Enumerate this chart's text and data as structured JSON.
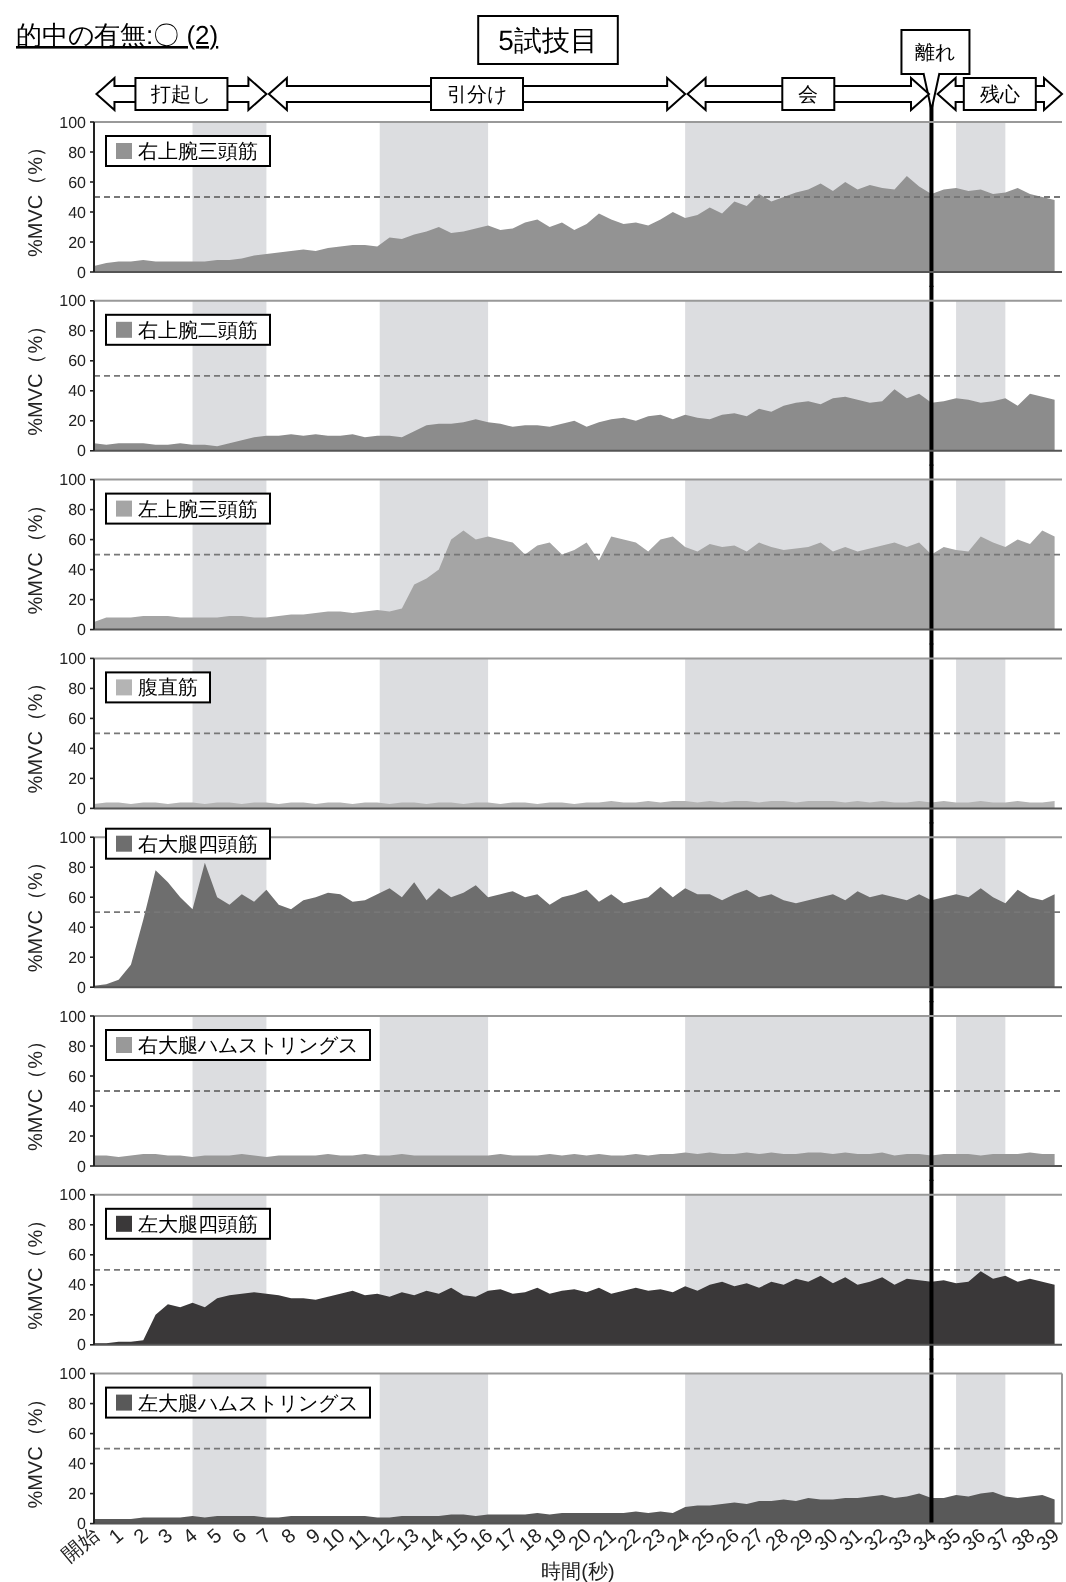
{
  "chart_data": [
    {
      "type": "area",
      "title": "5試技目",
      "annotations": [
        "的中の有無:〇 (2)",
        "打起し",
        "引分け",
        "会",
        "残心"
      ],
      "ylabel": "%MVC（%）",
      "tick_labels": "y",
      "xlim": [
        0,
        39.3
      ],
      "ylim": [
        0,
        100
      ],
      "yticks": [
        0,
        20,
        40,
        60,
        80,
        100
      ],
      "x": [
        0,
        0.5,
        1,
        1.5,
        2,
        2.5,
        3,
        3.5,
        4,
        4.5,
        5,
        5.5,
        6,
        6.5,
        7,
        7.5,
        8,
        8.5,
        9,
        9.5,
        10,
        10.5,
        11,
        11.5,
        12,
        12.5,
        13,
        13.5,
        14,
        14.5,
        15,
        15.5,
        16,
        16.5,
        17,
        17.5,
        18,
        18.5,
        19,
        19.5,
        20,
        20.5,
        21,
        21.5,
        22,
        22.5,
        23,
        23.5,
        24,
        24.5,
        25,
        25.5,
        26,
        26.5,
        27,
        27.5,
        28,
        28.5,
        29,
        29.5,
        30,
        30.5,
        31,
        31.5,
        32,
        32.5,
        33,
        33.5,
        34,
        34.5,
        35,
        35.5,
        36,
        36.5,
        37,
        37.5,
        38,
        38.5,
        39
      ],
      "bands": [
        {
          "axis": "x",
          "from": 4,
          "to": 7,
          "color": "#dcdde0"
        },
        {
          "axis": "x",
          "from": 11.6,
          "to": 16,
          "color": "#dcdde0"
        },
        {
          "axis": "x",
          "from": 24,
          "to": 34,
          "color": "#dcdde0"
        },
        {
          "axis": "x",
          "from": 35,
          "to": 37,
          "color": "#dcdde0"
        }
      ],
      "ref_lines": [
        {
          "axis": "y",
          "value": 50,
          "color": "#777777",
          "line_style": "dashed"
        },
        {
          "axis": "x",
          "value": 34,
          "label": "離れ",
          "color": "#000000"
        }
      ],
      "series": [
        {
          "name": "右上腕三頭筋",
          "color": "#939393",
          "values": [
            4,
            6,
            7,
            7,
            8,
            7,
            7,
            7,
            7,
            7,
            8,
            8,
            9,
            11,
            12,
            13,
            14,
            15,
            14,
            16,
            17,
            18,
            18,
            17,
            23,
            22,
            25,
            27,
            30,
            26,
            27,
            29,
            31,
            28,
            29,
            33,
            35,
            30,
            33,
            28,
            32,
            39,
            35,
            32,
            33,
            31,
            35,
            40,
            36,
            38,
            43,
            39,
            47,
            44,
            52,
            47,
            50,
            53,
            55,
            59,
            54,
            60,
            55,
            58,
            56,
            55,
            64,
            57,
            52,
            55,
            56,
            54,
            55,
            52,
            53,
            56,
            52,
            50,
            48
          ]
        }
      ]
    },
    {
      "type": "area",
      "ylabel": "%MVC（%）",
      "tick_labels": "y",
      "xlim": [
        0,
        39.3
      ],
      "ylim": [
        0,
        100
      ],
      "yticks": [
        0,
        20,
        40,
        60,
        80,
        100
      ],
      "x": [
        0,
        0.5,
        1,
        1.5,
        2,
        2.5,
        3,
        3.5,
        4,
        4.5,
        5,
        5.5,
        6,
        6.5,
        7,
        7.5,
        8,
        8.5,
        9,
        9.5,
        10,
        10.5,
        11,
        11.5,
        12,
        12.5,
        13,
        13.5,
        14,
        14.5,
        15,
        15.5,
        16,
        16.5,
        17,
        17.5,
        18,
        18.5,
        19,
        19.5,
        20,
        20.5,
        21,
        21.5,
        22,
        22.5,
        23,
        23.5,
        24,
        24.5,
        25,
        25.5,
        26,
        26.5,
        27,
        27.5,
        28,
        28.5,
        29,
        29.5,
        30,
        30.5,
        31,
        31.5,
        32,
        32.5,
        33,
        33.5,
        34,
        34.5,
        35,
        35.5,
        36,
        36.5,
        37,
        37.5,
        38,
        38.5,
        39
      ],
      "bands": [
        {
          "axis": "x",
          "from": 4,
          "to": 7,
          "color": "#dcdde0"
        },
        {
          "axis": "x",
          "from": 11.6,
          "to": 16,
          "color": "#dcdde0"
        },
        {
          "axis": "x",
          "from": 24,
          "to": 34,
          "color": "#dcdde0"
        },
        {
          "axis": "x",
          "from": 35,
          "to": 37,
          "color": "#dcdde0"
        }
      ],
      "ref_lines": [
        {
          "axis": "y",
          "value": 50,
          "color": "#777777",
          "line_style": "dashed"
        },
        {
          "axis": "x",
          "value": 34,
          "color": "#000000"
        }
      ],
      "series": [
        {
          "name": "右上腕二頭筋",
          "color": "#8c8c8c",
          "values": [
            5,
            4,
            5,
            5,
            5,
            4,
            4,
            5,
            4,
            4,
            3,
            5,
            7,
            9,
            10,
            10,
            11,
            10,
            11,
            10,
            10,
            11,
            9,
            10,
            10,
            9,
            13,
            17,
            18,
            18,
            19,
            21,
            19,
            18,
            16,
            17,
            17,
            16,
            18,
            20,
            16,
            19,
            21,
            22,
            20,
            23,
            24,
            21,
            24,
            22,
            21,
            24,
            25,
            23,
            28,
            26,
            30,
            32,
            33,
            31,
            35,
            36,
            34,
            32,
            33,
            41,
            35,
            38,
            32,
            33,
            35,
            34,
            32,
            33,
            35,
            30,
            38,
            36,
            34
          ]
        }
      ]
    },
    {
      "type": "area",
      "ylabel": "%MVC（%）",
      "tick_labels": "y",
      "xlim": [
        0,
        39.3
      ],
      "ylim": [
        0,
        100
      ],
      "yticks": [
        0,
        20,
        40,
        60,
        80,
        100
      ],
      "x": [
        0,
        0.5,
        1,
        1.5,
        2,
        2.5,
        3,
        3.5,
        4,
        4.5,
        5,
        5.5,
        6,
        6.5,
        7,
        7.5,
        8,
        8.5,
        9,
        9.5,
        10,
        10.5,
        11,
        11.5,
        12,
        12.5,
        13,
        13.5,
        14,
        14.5,
        15,
        15.5,
        16,
        16.5,
        17,
        17.5,
        18,
        18.5,
        19,
        19.5,
        20,
        20.5,
        21,
        21.5,
        22,
        22.5,
        23,
        23.5,
        24,
        24.5,
        25,
        25.5,
        26,
        26.5,
        27,
        27.5,
        28,
        28.5,
        29,
        29.5,
        30,
        30.5,
        31,
        31.5,
        32,
        32.5,
        33,
        33.5,
        34,
        34.5,
        35,
        35.5,
        36,
        36.5,
        37,
        37.5,
        38,
        38.5,
        39
      ],
      "bands": [
        {
          "axis": "x",
          "from": 4,
          "to": 7,
          "color": "#dcdde0"
        },
        {
          "axis": "x",
          "from": 11.6,
          "to": 16,
          "color": "#dcdde0"
        },
        {
          "axis": "x",
          "from": 24,
          "to": 34,
          "color": "#dcdde0"
        },
        {
          "axis": "x",
          "from": 35,
          "to": 37,
          "color": "#dcdde0"
        }
      ],
      "ref_lines": [
        {
          "axis": "y",
          "value": 50,
          "color": "#777777",
          "line_style": "dashed"
        },
        {
          "axis": "x",
          "value": 34,
          "color": "#000000"
        }
      ],
      "series": [
        {
          "name": "左上腕三頭筋",
          "color": "#a5a5a5",
          "values": [
            5,
            8,
            8,
            8,
            9,
            9,
            9,
            8,
            8,
            8,
            8,
            9,
            9,
            8,
            8,
            9,
            10,
            10,
            11,
            12,
            12,
            11,
            12,
            13,
            12,
            14,
            30,
            34,
            40,
            60,
            66,
            60,
            62,
            60,
            58,
            50,
            56,
            58,
            50,
            53,
            58,
            46,
            62,
            60,
            58,
            52,
            60,
            62,
            55,
            52,
            57,
            55,
            56,
            52,
            58,
            55,
            53,
            54,
            55,
            58,
            52,
            55,
            52,
            54,
            56,
            58,
            55,
            58,
            50,
            55,
            53,
            52,
            62,
            58,
            55,
            60,
            57,
            66,
            62
          ]
        }
      ]
    },
    {
      "type": "area",
      "ylabel": "%MVC（%）",
      "tick_labels": "y",
      "xlim": [
        0,
        39.3
      ],
      "ylim": [
        0,
        100
      ],
      "yticks": [
        0,
        20,
        40,
        60,
        80,
        100
      ],
      "x": [
        0,
        0.5,
        1,
        1.5,
        2,
        2.5,
        3,
        3.5,
        4,
        4.5,
        5,
        5.5,
        6,
        6.5,
        7,
        7.5,
        8,
        8.5,
        9,
        9.5,
        10,
        10.5,
        11,
        11.5,
        12,
        12.5,
        13,
        13.5,
        14,
        14.5,
        15,
        15.5,
        16,
        16.5,
        17,
        17.5,
        18,
        18.5,
        19,
        19.5,
        20,
        20.5,
        21,
        21.5,
        22,
        22.5,
        23,
        23.5,
        24,
        24.5,
        25,
        25.5,
        26,
        26.5,
        27,
        27.5,
        28,
        28.5,
        29,
        29.5,
        30,
        30.5,
        31,
        31.5,
        32,
        32.5,
        33,
        33.5,
        34,
        34.5,
        35,
        35.5,
        36,
        36.5,
        37,
        37.5,
        38,
        38.5,
        39
      ],
      "bands": [
        {
          "axis": "x",
          "from": 4,
          "to": 7,
          "color": "#dcdde0"
        },
        {
          "axis": "x",
          "from": 11.6,
          "to": 16,
          "color": "#dcdde0"
        },
        {
          "axis": "x",
          "from": 24,
          "to": 34,
          "color": "#dcdde0"
        },
        {
          "axis": "x",
          "from": 35,
          "to": 37,
          "color": "#dcdde0"
        }
      ],
      "ref_lines": [
        {
          "axis": "y",
          "value": 50,
          "color": "#777777",
          "line_style": "dashed"
        },
        {
          "axis": "x",
          "value": 34,
          "color": "#000000"
        }
      ],
      "series": [
        {
          "name": "腹直筋",
          "color": "#b4b4b4",
          "values": [
            3,
            4,
            4,
            3,
            4,
            4,
            3,
            4,
            4,
            3,
            4,
            4,
            3,
            4,
            4,
            3,
            4,
            4,
            3,
            4,
            4,
            3,
            4,
            4,
            3,
            4,
            4,
            3,
            4,
            4,
            3,
            4,
            4,
            3,
            4,
            4,
            3,
            4,
            4,
            3,
            4,
            4,
            5,
            4,
            4,
            5,
            4,
            5,
            5,
            4,
            5,
            4,
            5,
            5,
            4,
            5,
            5,
            4,
            5,
            5,
            5,
            4,
            5,
            4,
            5,
            4,
            4,
            5,
            4,
            5,
            4,
            4,
            5,
            4,
            4,
            5,
            4,
            4,
            5
          ]
        }
      ]
    },
    {
      "type": "area",
      "ylabel": "%MVC（%）",
      "tick_labels": "y",
      "xlim": [
        0,
        39.3
      ],
      "ylim": [
        0,
        100
      ],
      "yticks": [
        0,
        20,
        40,
        60,
        80,
        100
      ],
      "x": [
        0,
        0.5,
        1,
        1.5,
        2,
        2.5,
        3,
        3.5,
        4,
        4.5,
        5,
        5.5,
        6,
        6.5,
        7,
        7.5,
        8,
        8.5,
        9,
        9.5,
        10,
        10.5,
        11,
        11.5,
        12,
        12.5,
        13,
        13.5,
        14,
        14.5,
        15,
        15.5,
        16,
        16.5,
        17,
        17.5,
        18,
        18.5,
        19,
        19.5,
        20,
        20.5,
        21,
        21.5,
        22,
        22.5,
        23,
        23.5,
        24,
        24.5,
        25,
        25.5,
        26,
        26.5,
        27,
        27.5,
        28,
        28.5,
        29,
        29.5,
        30,
        30.5,
        31,
        31.5,
        32,
        32.5,
        33,
        33.5,
        34,
        34.5,
        35,
        35.5,
        36,
        36.5,
        37,
        37.5,
        38,
        38.5,
        39
      ],
      "bands": [
        {
          "axis": "x",
          "from": 4,
          "to": 7,
          "color": "#dcdde0"
        },
        {
          "axis": "x",
          "from": 11.6,
          "to": 16,
          "color": "#dcdde0"
        },
        {
          "axis": "x",
          "from": 24,
          "to": 34,
          "color": "#dcdde0"
        },
        {
          "axis": "x",
          "from": 35,
          "to": 37,
          "color": "#dcdde0"
        }
      ],
      "ref_lines": [
        {
          "axis": "y",
          "value": 50,
          "color": "#777777",
          "line_style": "dashed"
        },
        {
          "axis": "x",
          "value": 34,
          "color": "#000000"
        }
      ],
      "series": [
        {
          "name": "右大腿四頭筋",
          "color": "#6e6e6e",
          "values": [
            1,
            2,
            5,
            15,
            45,
            78,
            70,
            60,
            52,
            83,
            60,
            55,
            62,
            57,
            65,
            55,
            52,
            58,
            60,
            63,
            62,
            57,
            58,
            62,
            66,
            60,
            70,
            58,
            66,
            60,
            63,
            68,
            60,
            62,
            64,
            60,
            62,
            55,
            60,
            62,
            65,
            57,
            62,
            56,
            58,
            60,
            67,
            60,
            66,
            62,
            62,
            58,
            62,
            65,
            60,
            62,
            58,
            56,
            58,
            60,
            62,
            58,
            64,
            60,
            62,
            60,
            58,
            62,
            58,
            60,
            62,
            60,
            66,
            60,
            56,
            65,
            60,
            58,
            62
          ]
        }
      ]
    },
    {
      "type": "area",
      "ylabel": "%MVC（%）",
      "tick_labels": "y",
      "xlim": [
        0,
        39.3
      ],
      "ylim": [
        0,
        100
      ],
      "yticks": [
        0,
        20,
        40,
        60,
        80,
        100
      ],
      "x": [
        0,
        0.5,
        1,
        1.5,
        2,
        2.5,
        3,
        3.5,
        4,
        4.5,
        5,
        5.5,
        6,
        6.5,
        7,
        7.5,
        8,
        8.5,
        9,
        9.5,
        10,
        10.5,
        11,
        11.5,
        12,
        12.5,
        13,
        13.5,
        14,
        14.5,
        15,
        15.5,
        16,
        16.5,
        17,
        17.5,
        18,
        18.5,
        19,
        19.5,
        20,
        20.5,
        21,
        21.5,
        22,
        22.5,
        23,
        23.5,
        24,
        24.5,
        25,
        25.5,
        26,
        26.5,
        27,
        27.5,
        28,
        28.5,
        29,
        29.5,
        30,
        30.5,
        31,
        31.5,
        32,
        32.5,
        33,
        33.5,
        34,
        34.5,
        35,
        35.5,
        36,
        36.5,
        37,
        37.5,
        38,
        38.5,
        39
      ],
      "bands": [
        {
          "axis": "x",
          "from": 4,
          "to": 7,
          "color": "#dcdde0"
        },
        {
          "axis": "x",
          "from": 11.6,
          "to": 16,
          "color": "#dcdde0"
        },
        {
          "axis": "x",
          "from": 24,
          "to": 34,
          "color": "#dcdde0"
        },
        {
          "axis": "x",
          "from": 35,
          "to": 37,
          "color": "#dcdde0"
        }
      ],
      "ref_lines": [
        {
          "axis": "y",
          "value": 50,
          "color": "#777777",
          "line_style": "dashed"
        },
        {
          "axis": "x",
          "value": 34,
          "color": "#000000"
        }
      ],
      "series": [
        {
          "name": "右大腿ハムストリングス",
          "color": "#999999",
          "values": [
            7,
            7,
            6,
            7,
            8,
            8,
            7,
            7,
            6,
            7,
            7,
            7,
            8,
            7,
            6,
            7,
            7,
            7,
            7,
            8,
            7,
            7,
            8,
            7,
            7,
            8,
            7,
            7,
            7,
            7,
            7,
            7,
            7,
            8,
            7,
            7,
            7,
            8,
            7,
            8,
            7,
            8,
            7,
            7,
            8,
            7,
            8,
            8,
            9,
            8,
            9,
            8,
            8,
            9,
            8,
            9,
            8,
            8,
            9,
            9,
            8,
            9,
            8,
            8,
            9,
            7,
            8,
            8,
            7,
            8,
            8,
            8,
            7,
            8,
            8,
            8,
            9,
            8,
            8
          ]
        }
      ]
    },
    {
      "type": "area",
      "ylabel": "%MVC（%）",
      "tick_labels": "y",
      "xlim": [
        0,
        39.3
      ],
      "ylim": [
        0,
        100
      ],
      "yticks": [
        0,
        20,
        40,
        60,
        80,
        100
      ],
      "x": [
        0,
        0.5,
        1,
        1.5,
        2,
        2.5,
        3,
        3.5,
        4,
        4.5,
        5,
        5.5,
        6,
        6.5,
        7,
        7.5,
        8,
        8.5,
        9,
        9.5,
        10,
        10.5,
        11,
        11.5,
        12,
        12.5,
        13,
        13.5,
        14,
        14.5,
        15,
        15.5,
        16,
        16.5,
        17,
        17.5,
        18,
        18.5,
        19,
        19.5,
        20,
        20.5,
        21,
        21.5,
        22,
        22.5,
        23,
        23.5,
        24,
        24.5,
        25,
        25.5,
        26,
        26.5,
        27,
        27.5,
        28,
        28.5,
        29,
        29.5,
        30,
        30.5,
        31,
        31.5,
        32,
        32.5,
        33,
        33.5,
        34,
        34.5,
        35,
        35.5,
        36,
        36.5,
        37,
        37.5,
        38,
        38.5,
        39
      ],
      "bands": [
        {
          "axis": "x",
          "from": 4,
          "to": 7,
          "color": "#dcdde0"
        },
        {
          "axis": "x",
          "from": 11.6,
          "to": 16,
          "color": "#dcdde0"
        },
        {
          "axis": "x",
          "from": 24,
          "to": 34,
          "color": "#dcdde0"
        },
        {
          "axis": "x",
          "from": 35,
          "to": 37,
          "color": "#dcdde0"
        }
      ],
      "ref_lines": [
        {
          "axis": "y",
          "value": 50,
          "color": "#777777",
          "line_style": "dashed"
        },
        {
          "axis": "x",
          "value": 34,
          "color": "#000000"
        }
      ],
      "series": [
        {
          "name": "左大腿四頭筋",
          "color": "#3a3839",
          "values": [
            1,
            1,
            2,
            2,
            3,
            20,
            27,
            25,
            28,
            25,
            31,
            33,
            34,
            35,
            34,
            33,
            31,
            31,
            30,
            32,
            34,
            36,
            33,
            34,
            32,
            35,
            33,
            36,
            34,
            38,
            33,
            32,
            36,
            37,
            34,
            35,
            38,
            34,
            36,
            37,
            35,
            38,
            34,
            36,
            38,
            36,
            37,
            35,
            39,
            36,
            40,
            42,
            39,
            41,
            38,
            42,
            40,
            44,
            42,
            46,
            41,
            45,
            40,
            42,
            45,
            40,
            44,
            43,
            42,
            43,
            41,
            42,
            49,
            44,
            46,
            42,
            44,
            42,
            40
          ]
        }
      ]
    },
    {
      "type": "area",
      "ylabel": "%MVC（%）",
      "xlabel": "時間(秒)",
      "xlim": [
        0,
        39.3
      ],
      "ylim": [
        0,
        100
      ],
      "yticks": [
        0,
        20,
        40,
        60,
        80,
        100
      ],
      "xticks": [
        {
          "value": 0,
          "label": "開始"
        },
        1,
        2,
        3,
        4,
        5,
        6,
        7,
        8,
        9,
        10,
        11,
        12,
        13,
        14,
        15,
        16,
        17,
        18,
        19,
        20,
        21,
        22,
        23,
        24,
        25,
        26,
        27,
        28,
        29,
        30,
        31,
        32,
        33,
        34,
        35,
        36,
        37,
        38,
        39
      ],
      "x": [
        0,
        0.5,
        1,
        1.5,
        2,
        2.5,
        3,
        3.5,
        4,
        4.5,
        5,
        5.5,
        6,
        6.5,
        7,
        7.5,
        8,
        8.5,
        9,
        9.5,
        10,
        10.5,
        11,
        11.5,
        12,
        12.5,
        13,
        13.5,
        14,
        14.5,
        15,
        15.5,
        16,
        16.5,
        17,
        17.5,
        18,
        18.5,
        19,
        19.5,
        20,
        20.5,
        21,
        21.5,
        22,
        22.5,
        23,
        23.5,
        24,
        24.5,
        25,
        25.5,
        26,
        26.5,
        27,
        27.5,
        28,
        28.5,
        29,
        29.5,
        30,
        30.5,
        31,
        31.5,
        32,
        32.5,
        33,
        33.5,
        34,
        34.5,
        35,
        35.5,
        36,
        36.5,
        37,
        37.5,
        38,
        38.5,
        39
      ],
      "bands": [
        {
          "axis": "x",
          "from": 4,
          "to": 7,
          "color": "#dcdde0"
        },
        {
          "axis": "x",
          "from": 11.6,
          "to": 16,
          "color": "#dcdde0"
        },
        {
          "axis": "x",
          "from": 24,
          "to": 34,
          "color": "#dcdde0"
        },
        {
          "axis": "x",
          "from": 35,
          "to": 37,
          "color": "#dcdde0"
        }
      ],
      "ref_lines": [
        {
          "axis": "y",
          "value": 50,
          "color": "#777777",
          "line_style": "dashed"
        },
        {
          "axis": "x",
          "value": 34,
          "color": "#000000"
        }
      ],
      "series": [
        {
          "name": "左大腿ハムストリングス",
          "color": "#595959",
          "values": [
            3,
            3,
            3,
            3,
            4,
            4,
            4,
            4,
            5,
            4,
            5,
            5,
            5,
            5,
            4,
            4,
            5,
            5,
            5,
            5,
            5,
            5,
            5,
            4,
            4,
            5,
            5,
            5,
            5,
            6,
            6,
            5,
            6,
            6,
            6,
            6,
            7,
            6,
            7,
            7,
            7,
            7,
            7,
            7,
            8,
            7,
            8,
            7,
            11,
            12,
            12,
            13,
            14,
            13,
            15,
            15,
            16,
            15,
            17,
            16,
            16,
            17,
            17,
            18,
            19,
            17,
            18,
            20,
            17,
            17,
            19,
            18,
            20,
            21,
            18,
            17,
            18,
            19,
            16
          ]
        }
      ]
    }
  ]
}
